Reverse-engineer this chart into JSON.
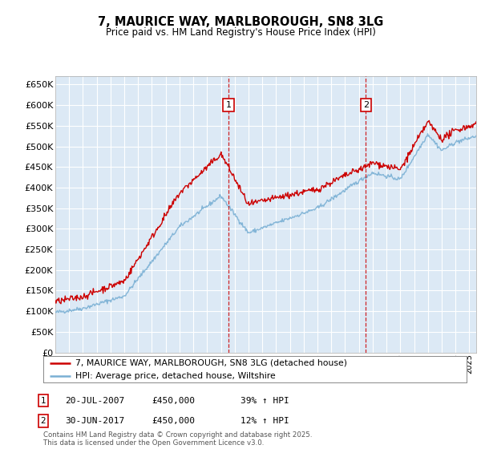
{
  "title": "7, MAURICE WAY, MARLBOROUGH, SN8 3LG",
  "subtitle": "Price paid vs. HM Land Registry's House Price Index (HPI)",
  "yticks": [
    0,
    50000,
    100000,
    150000,
    200000,
    250000,
    300000,
    350000,
    400000,
    450000,
    500000,
    550000,
    600000,
    650000
  ],
  "ylim": [
    0,
    670000
  ],
  "plot_bg": "#dce9f5",
  "red_color": "#cc0000",
  "blue_color": "#7ab0d4",
  "sale1_date": 2007.55,
  "sale2_date": 2017.5,
  "legend_line1": "7, MAURICE WAY, MARLBOROUGH, SN8 3LG (detached house)",
  "legend_line2": "HPI: Average price, detached house, Wiltshire",
  "annotation1_date": "20-JUL-2007",
  "annotation1_price": "£450,000",
  "annotation1_hpi": "39% ↑ HPI",
  "annotation2_date": "30-JUN-2017",
  "annotation2_price": "£450,000",
  "annotation2_hpi": "12% ↑ HPI",
  "footer": "Contains HM Land Registry data © Crown copyright and database right 2025.\nThis data is licensed under the Open Government Licence v3.0.",
  "xmin": 1995,
  "xmax": 2025.5
}
